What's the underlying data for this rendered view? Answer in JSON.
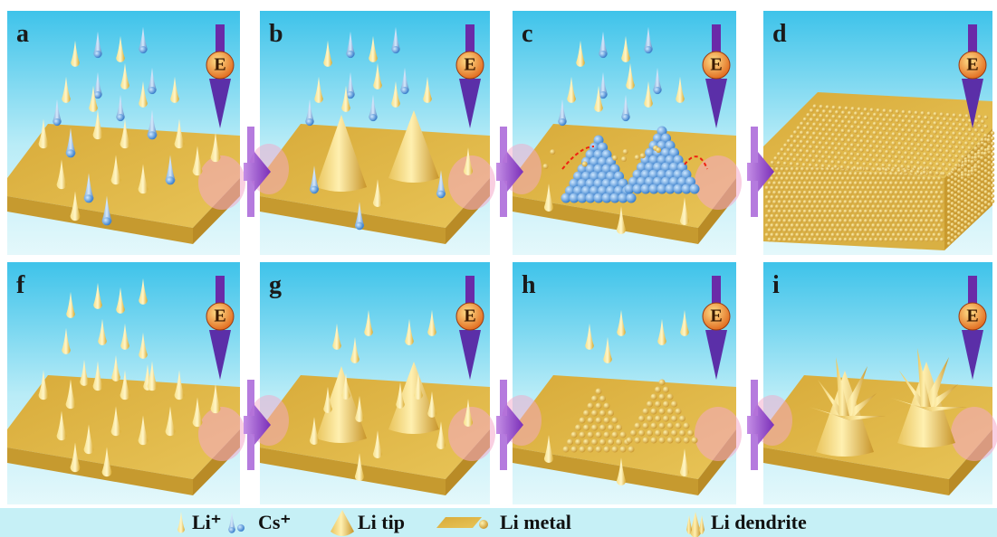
{
  "panels": [
    {
      "label": "a"
    },
    {
      "label": "b"
    },
    {
      "label": "c"
    },
    {
      "label": "d"
    },
    {
      "label": "f"
    },
    {
      "label": "g"
    },
    {
      "label": "h"
    },
    {
      "label": "i"
    }
  ],
  "field_label": "E",
  "legend": [
    {
      "text": "Li⁺"
    },
    {
      "text": "Cs⁺"
    },
    {
      "text": "Li tip"
    },
    {
      "text": "Li metal"
    },
    {
      "text": "Li dendrite"
    }
  ]
}
